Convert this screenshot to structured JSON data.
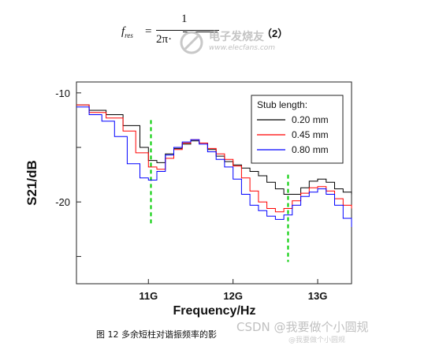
{
  "formula": {
    "lhs": "f",
    "lhs_sub": "res",
    "equals": "=",
    "numerator": "1",
    "denominator": "2π·",
    "equation_number": "（2）"
  },
  "watermarks": {
    "top_cn": "电子发烧友",
    "top_url": "www.elecfans.com",
    "bottom_main": "CSDN @我要做个小圆规",
    "bottom_sub": "@我要做个小圆规"
  },
  "caption": "图 12  多余短柱对谐振频率的影",
  "colors": {
    "series_0_20": "#000000",
    "series_0_45": "#ff0000",
    "series_0_80": "#0000ff",
    "marker": "#00cc00"
  },
  "chart_data": {
    "type": "line",
    "xlabel": "Frequency/Hz",
    "ylabel": "S21/dB",
    "xlim": [
      10.15,
      13.4
    ],
    "ylim": [
      -27.5,
      -9.0
    ],
    "xticks": [
      {
        "value": 11,
        "label": "11G"
      },
      {
        "value": 12,
        "label": "12G"
      },
      {
        "value": 13,
        "label": "13G"
      }
    ],
    "yticks": [
      {
        "value": -10,
        "label": "-10"
      },
      {
        "value": -15,
        "label": ""
      },
      {
        "value": -20,
        "label": "-20"
      },
      {
        "value": -25,
        "label": ""
      }
    ],
    "legend": {
      "title": "Stub length:",
      "placement": "top-right"
    },
    "markers": [
      {
        "x": 11.03,
        "y_from": -12.5,
        "y_to": -22.0
      },
      {
        "x": 12.65,
        "y_from": -17.5,
        "y_to": -25.5
      }
    ],
    "series": [
      {
        "name": "0.20 mm",
        "color": "#000000",
        "points": [
          [
            10.15,
            -11.1
          ],
          [
            10.3,
            -11.6
          ],
          [
            10.5,
            -12.0
          ],
          [
            10.7,
            -13.0
          ],
          [
            10.9,
            -15.0
          ],
          [
            11.0,
            -16.2
          ],
          [
            11.1,
            -16.4
          ],
          [
            11.2,
            -15.6
          ],
          [
            11.3,
            -15.1
          ],
          [
            11.4,
            -14.7
          ],
          [
            11.5,
            -14.4
          ],
          [
            11.6,
            -14.6
          ],
          [
            11.7,
            -15.2
          ],
          [
            11.8,
            -15.8
          ],
          [
            11.9,
            -16.3
          ],
          [
            12.0,
            -16.6
          ],
          [
            12.1,
            -16.9
          ],
          [
            12.2,
            -17.2
          ],
          [
            12.3,
            -17.6
          ],
          [
            12.4,
            -18.2
          ],
          [
            12.5,
            -18.8
          ],
          [
            12.6,
            -19.3
          ],
          [
            12.7,
            -19.3
          ],
          [
            12.8,
            -18.7
          ],
          [
            12.9,
            -18.1
          ],
          [
            13.0,
            -17.9
          ],
          [
            13.1,
            -18.2
          ],
          [
            13.2,
            -18.8
          ],
          [
            13.3,
            -19.1
          ],
          [
            13.4,
            -19.3
          ]
        ]
      },
      {
        "name": "0.45 mm",
        "color": "#ff0000",
        "points": [
          [
            10.15,
            -11.1
          ],
          [
            10.3,
            -11.8
          ],
          [
            10.5,
            -12.3
          ],
          [
            10.7,
            -13.5
          ],
          [
            10.85,
            -15.5
          ],
          [
            11.0,
            -16.8
          ],
          [
            11.1,
            -17.0
          ],
          [
            11.2,
            -16.0
          ],
          [
            11.3,
            -15.2
          ],
          [
            11.4,
            -14.6
          ],
          [
            11.5,
            -14.3
          ],
          [
            11.6,
            -14.6
          ],
          [
            11.7,
            -15.1
          ],
          [
            11.8,
            -15.6
          ],
          [
            11.9,
            -16.1
          ],
          [
            12.0,
            -16.7
          ],
          [
            12.1,
            -17.8
          ],
          [
            12.2,
            -19.0
          ],
          [
            12.3,
            -20.0
          ],
          [
            12.4,
            -20.6
          ],
          [
            12.5,
            -20.9
          ],
          [
            12.6,
            -20.6
          ],
          [
            12.7,
            -19.9
          ],
          [
            12.8,
            -19.2
          ],
          [
            12.9,
            -18.7
          ],
          [
            13.0,
            -18.6
          ],
          [
            13.1,
            -19.0
          ],
          [
            13.2,
            -19.7
          ],
          [
            13.3,
            -20.3
          ],
          [
            13.4,
            -20.6
          ]
        ]
      },
      {
        "name": "0.80 mm",
        "color": "#0000ff",
        "points": [
          [
            10.15,
            -11.3
          ],
          [
            10.3,
            -12.0
          ],
          [
            10.45,
            -12.6
          ],
          [
            10.6,
            -14.0
          ],
          [
            10.75,
            -16.5
          ],
          [
            10.9,
            -17.8
          ],
          [
            11.0,
            -18.0
          ],
          [
            11.1,
            -17.2
          ],
          [
            11.2,
            -15.7
          ],
          [
            11.3,
            -15.0
          ],
          [
            11.4,
            -14.5
          ],
          [
            11.5,
            -14.3
          ],
          [
            11.6,
            -14.7
          ],
          [
            11.7,
            -15.4
          ],
          [
            11.8,
            -16.1
          ],
          [
            11.9,
            -16.8
          ],
          [
            12.0,
            -17.9
          ],
          [
            12.1,
            -19.3
          ],
          [
            12.2,
            -20.3
          ],
          [
            12.3,
            -20.8
          ],
          [
            12.4,
            -21.3
          ],
          [
            12.5,
            -21.6
          ],
          [
            12.6,
            -21.2
          ],
          [
            12.7,
            -20.3
          ],
          [
            12.8,
            -19.5
          ],
          [
            12.9,
            -19.1
          ],
          [
            13.0,
            -18.8
          ],
          [
            13.1,
            -19.3
          ],
          [
            13.2,
            -20.3
          ],
          [
            13.3,
            -21.5
          ],
          [
            13.4,
            -22.3
          ]
        ]
      }
    ]
  }
}
